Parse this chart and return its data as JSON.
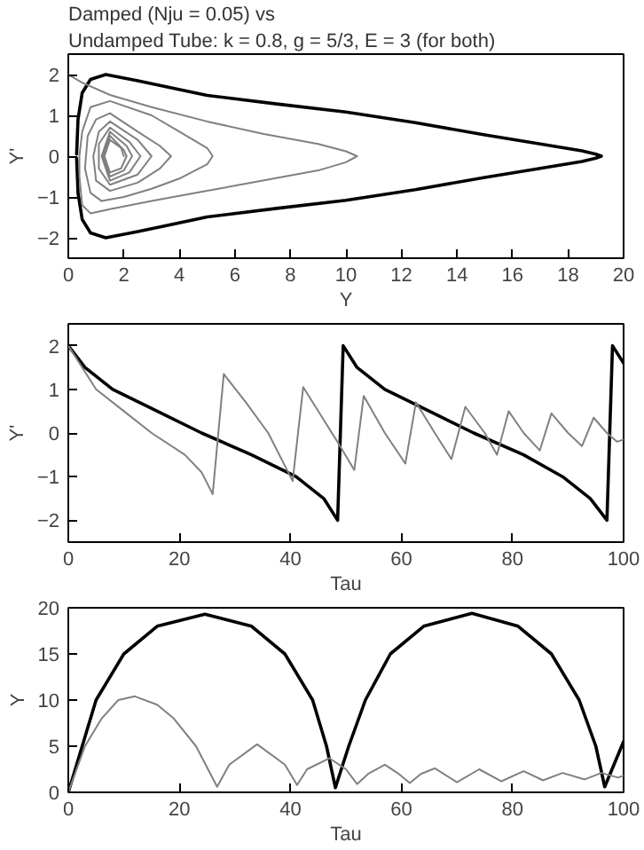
{
  "chart_data": [
    {
      "type": "line",
      "title": "Damped (Nju = 0.05) vs",
      "subtitle": "Undamped Tube: k = 0.8, g = 5/3, E = 3 (for both)",
      "xlabel": "Y",
      "ylabel": "Y'",
      "xlim": [
        0,
        20
      ],
      "ylim": [
        -2.5,
        2.5
      ],
      "xticks": [
        0,
        2,
        4,
        6,
        8,
        10,
        12,
        14,
        16,
        18,
        20
      ],
      "yticks": [
        -2,
        -1,
        0,
        1,
        2
      ],
      "grid": false,
      "series": [
        {
          "color": "#000000",
          "x": [
            0.3,
            0.35,
            0.5,
            0.8,
            1.35,
            2.5,
            5,
            7.5,
            10,
            12.5,
            15,
            17,
            18.5,
            19.0,
            19.2,
            19.0,
            18.5,
            17,
            15,
            12.5,
            10,
            7.5,
            5,
            2.5,
            1.35,
            0.8,
            0.5,
            0.35,
            0.3
          ],
          "values": [
            0.05,
            0.9,
            1.55,
            1.88,
            2.0,
            1.85,
            1.49,
            1.28,
            1.08,
            0.82,
            0.52,
            0.3,
            0.13,
            0.05,
            0,
            -0.05,
            -0.13,
            -0.3,
            -0.52,
            -0.82,
            -1.08,
            -1.28,
            -1.49,
            -1.85,
            -2.0,
            -1.88,
            -1.55,
            -0.9,
            -0.05
          ]
        },
        {
          "color": "#808080",
          "x": [
            0.0,
            0.5,
            1.5,
            3,
            5,
            7,
            9,
            10,
            10.4,
            10,
            9,
            7,
            5,
            3,
            1.5,
            0.8,
            0.5,
            0.4,
            0.4,
            0.5,
            0.8,
            1.5,
            3,
            4,
            5,
            5.2,
            5,
            4,
            3,
            2,
            1.2,
            0.8,
            0.6,
            0.7,
            1.0,
            1.5,
            2.5,
            3.3,
            3.7,
            3.3,
            2.5,
            1.5,
            1.0,
            0.9,
            1.1,
            1.5,
            2.5,
            3.0,
            2.5,
            1.5,
            1.1,
            1.1,
            1.5,
            2.2,
            2.6,
            2.2,
            1.5,
            1.2,
            1.5,
            2.1,
            2.3,
            2.0,
            1.5,
            1.25,
            1.5,
            2.0,
            2.1,
            1.9,
            1.5,
            1.3,
            1.5,
            1.9,
            2.0
          ],
          "values": [
            2.0,
            1.8,
            1.5,
            1.2,
            0.85,
            0.55,
            0.3,
            0.12,
            0,
            -0.15,
            -0.35,
            -0.6,
            -0.85,
            -1.1,
            -1.3,
            -1.4,
            -1.2,
            -0.5,
            0,
            0.6,
            1.2,
            1.35,
            1.0,
            0.6,
            0.2,
            0,
            -0.2,
            -0.55,
            -0.8,
            -1.0,
            -1.1,
            -0.9,
            -0.3,
            0.5,
            0.9,
            1.05,
            0.6,
            0.25,
            0,
            -0.3,
            -0.65,
            -0.85,
            -0.6,
            0,
            0.6,
            0.85,
            0.4,
            0,
            -0.45,
            -0.7,
            -0.3,
            0.3,
            0.7,
            0.35,
            0,
            -0.4,
            -0.6,
            0,
            0.6,
            0.25,
            0,
            -0.35,
            -0.5,
            0,
            0.5,
            0.15,
            0,
            -0.3,
            -0.4,
            0,
            0.4,
            0.2,
            0
          ]
        }
      ]
    },
    {
      "type": "line",
      "xlabel": "Tau",
      "ylabel": "Y'",
      "xlim": [
        0,
        100
      ],
      "ylim": [
        -2.5,
        2.5
      ],
      "xticks": [
        0,
        20,
        40,
        60,
        80,
        100
      ],
      "yticks": [
        -2,
        -1,
        0,
        1,
        2
      ],
      "grid": false,
      "series": [
        {
          "color": "#000000",
          "x": [
            0,
            3,
            8,
            16,
            24,
            33,
            41,
            46,
            48.5,
            49.5,
            52,
            57,
            65,
            73,
            82,
            89,
            94,
            97,
            98,
            100
          ],
          "values": [
            2.0,
            1.5,
            1.0,
            0.5,
            0,
            -0.5,
            -1.0,
            -1.5,
            -2.0,
            2.0,
            1.5,
            1.0,
            0.5,
            0,
            -0.5,
            -1.0,
            -1.5,
            -2.0,
            2.0,
            1.6
          ]
        },
        {
          "color": "#808080",
          "x": [
            0,
            5,
            10,
            15,
            21,
            24,
            26,
            28,
            32,
            36,
            40.4,
            42.3,
            45.5,
            48.7,
            51.5,
            53.2,
            57,
            60.7,
            62.6,
            66,
            69,
            71.5,
            75,
            77.2,
            79.3,
            82,
            84.9,
            87,
            90,
            92.5,
            94.6,
            97,
            98.8,
            100
          ],
          "values": [
            2.0,
            1.0,
            0.5,
            0,
            -0.5,
            -0.9,
            -1.4,
            1.35,
            0.7,
            0,
            -1.1,
            1.05,
            0.4,
            -0.25,
            -0.85,
            0.85,
            0,
            -0.7,
            0.7,
            0,
            -0.6,
            0.6,
            0,
            -0.5,
            0.5,
            0,
            -0.4,
            0.45,
            0,
            -0.3,
            0.35,
            0,
            -0.2,
            -0.15
          ]
        }
      ]
    },
    {
      "type": "line",
      "xlabel": "Tau",
      "ylabel": "Y",
      "xlim": [
        0,
        100
      ],
      "ylim": [
        0,
        20
      ],
      "xticks": [
        0,
        20,
        40,
        60,
        80,
        100
      ],
      "yticks": [
        0,
        5,
        10,
        15,
        20
      ],
      "grid": false,
      "series": [
        {
          "color": "#000000",
          "x": [
            0,
            5,
            10,
            16,
            24.6,
            33,
            39,
            44,
            46.5,
            48.1,
            50.5,
            53.5,
            58,
            64,
            72.7,
            81,
            87,
            92,
            95,
            96.6,
            100
          ],
          "values": [
            0,
            10,
            15,
            18,
            19.3,
            18,
            15,
            10,
            5,
            0.5,
            5,
            10,
            15,
            18,
            19.4,
            18,
            15,
            10,
            5,
            0.6,
            5.5
          ]
        },
        {
          "color": "#808080",
          "x": [
            0,
            3,
            6,
            9,
            12,
            16,
            19,
            23,
            26.8,
            29,
            34,
            39,
            41.2,
            43,
            47,
            50,
            52,
            54,
            57,
            59.5,
            61.5,
            63.5,
            66,
            70,
            74,
            78,
            82,
            85.5,
            89,
            93,
            96,
            99,
            100
          ],
          "values": [
            0,
            5,
            8,
            10,
            10.4,
            9.5,
            8,
            5,
            0.6,
            3,
            5.2,
            3,
            0.8,
            2.5,
            3.7,
            2.5,
            0.9,
            2,
            3.0,
            2,
            1.0,
            2,
            2.6,
            1.1,
            2.5,
            1.2,
            2.3,
            1.3,
            2.1,
            1.4,
            2.1,
            1.6,
            1.8
          ]
        }
      ]
    }
  ]
}
